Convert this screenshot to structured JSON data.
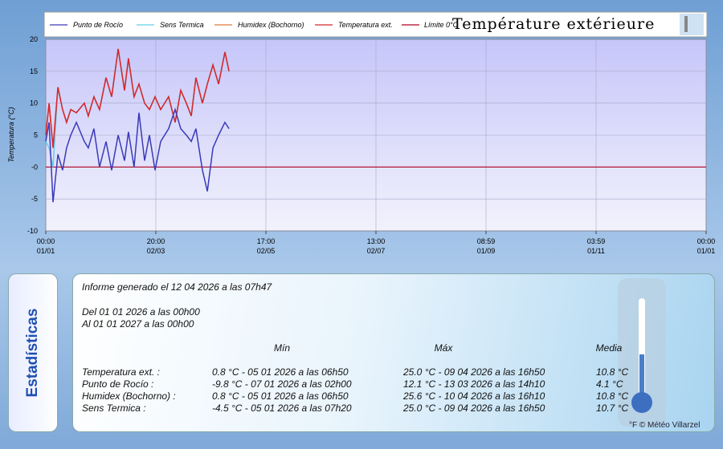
{
  "chart_data": {
    "type": "line",
    "title": "Température extérieure",
    "ylabel": "Temperatura (°C)",
    "x": [
      0,
      1.8,
      4,
      6.7,
      9.3,
      11.5,
      13.8,
      16.9,
      21.3,
      23.5,
      26.6,
      29.7,
      33.3,
      36.4,
      40,
      43.5,
      45.7,
      48.8,
      51.5,
      54.6,
      57.3,
      60.4,
      63.5,
      67.9,
      71.5,
      74.6,
      77.7,
      80.4,
      83,
      86.6,
      89.3,
      92.4,
      95.5,
      99,
      101.3
    ],
    "series": [
      {
        "name": "Humidex (Bochorno)",
        "color": "#e07a3a",
        "values": [
          5,
          10,
          3,
          12.5,
          9,
          7,
          9,
          8.5,
          10,
          8,
          11,
          9,
          14,
          11,
          18.5,
          12,
          17,
          11,
          13,
          10,
          9,
          11,
          9,
          11,
          7,
          12,
          10,
          8,
          14,
          10,
          13,
          16,
          13,
          18,
          15
        ]
      },
      {
        "name": "Sens Termica",
        "color": "#5fd0e6",
        "values": [
          4,
          3,
          0,
          12.5,
          9,
          7,
          9,
          8.5,
          10,
          8,
          11,
          9,
          14,
          11,
          18.5,
          12,
          17,
          11,
          13,
          10,
          9,
          11,
          9,
          11,
          7,
          12,
          10,
          8,
          14,
          10,
          13,
          16,
          13,
          18,
          15
        ]
      },
      {
        "name": "Temperatura ext.",
        "color": "#d8262c",
        "values": [
          5,
          10,
          3,
          12.5,
          9,
          7,
          9,
          8.5,
          10,
          8,
          11,
          9,
          14,
          11,
          18.5,
          12,
          17,
          11,
          13,
          10,
          9,
          11,
          9,
          11,
          7,
          12,
          10,
          8,
          14,
          10,
          13,
          16,
          13,
          18,
          15
        ]
      },
      {
        "name": "Punto de Rocío",
        "color": "#3a3ab8",
        "values": [
          4,
          7,
          -5.5,
          2,
          -0.5,
          3,
          5,
          7,
          4,
          3,
          6,
          0,
          4,
          -0.5,
          5,
          1,
          5.5,
          0,
          8.5,
          1,
          5,
          -0.5,
          4,
          6,
          9,
          6,
          5,
          4,
          6,
          -0.5,
          -3.8,
          3,
          5,
          7,
          6
        ]
      }
    ],
    "limit": {
      "name": "Límite 0°C",
      "color": "#b0001e",
      "value": 0
    },
    "legend_order": [
      3,
      1,
      0,
      2
    ],
    "xlim": [
      0,
      365
    ],
    "xticks": [
      {
        "value": 0,
        "label": "00:00 01/01"
      },
      {
        "value": 60.83,
        "label": "20:00 02/03"
      },
      {
        "value": 121.67,
        "label": "17:00 02/05"
      },
      {
        "value": 182.5,
        "label": "13:00 02/07"
      },
      {
        "value": 243.33,
        "label": "08:59 01/09"
      },
      {
        "value": 304.17,
        "label": "03:59 01/11"
      },
      {
        "value": 365,
        "label": "00:00 01/01"
      }
    ],
    "ylim": [
      -10,
      20
    ],
    "yticks": [
      -10,
      -5,
      {
        "value": 0,
        "label": "-0"
      },
      5,
      10,
      15,
      20
    ],
    "grid": true
  },
  "stats": {
    "tab": "Estadísticas",
    "report": "Informe generado el 12 04 2026 a las 07h47",
    "from": "Del 01 01 2026 a las 00h00",
    "to": "Al 01 01 2027 a las 00h00",
    "headers": [
      "Mín",
      "Máx",
      "Media"
    ],
    "rows": [
      [
        "Temperatura ext. :",
        "0.8 °C - 05 01 2026 a las 06h50",
        "25.0 °C - 09 04 2026 a las 16h50",
        "10.8 °C"
      ],
      [
        "Punto de Rocío :",
        "-9.8 °C - 07 01 2026 a las 02h00",
        "12.1 °C - 13 03 2026 a las 14h10",
        "4.1 °C"
      ],
      [
        "Humidex (Bochorno) :",
        "0.8 °C - 05 01 2026 a las 06h50",
        "25.6 °C - 10 04 2026 a las 16h10",
        "10.8 °C"
      ],
      [
        "Sens Termica :",
        "-4.5 °C - 05 01 2026 a las 07h20",
        "25.0 °C - 09 04 2026 a las 16h50",
        "10.7 °C"
      ]
    ],
    "credit": "°F © Météo Villarzel"
  }
}
